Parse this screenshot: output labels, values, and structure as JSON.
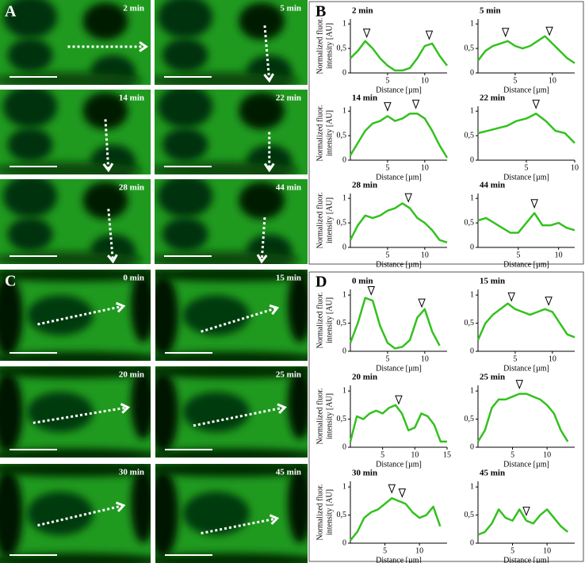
{
  "panel_a": {
    "label": "A",
    "frames": [
      "2 min",
      "5 min",
      "14 min",
      "22 min",
      "28 min",
      "44 min"
    ]
  },
  "panel_b": {
    "label": "B",
    "y_label": [
      "Normalized fluor.",
      "intensity [AU]"
    ],
    "x_label": "Distance [µm]",
    "yticks": [
      0,
      {
        "value": 0.5,
        "label": "0,5"
      },
      1
    ],
    "ylim": [
      0,
      1.1
    ],
    "plots": [
      {
        "time": "2 min",
        "xlim": [
          0,
          13
        ],
        "xticks": [
          5,
          10
        ],
        "x": [
          0,
          1,
          2,
          3,
          4,
          5,
          6,
          7,
          8,
          9,
          10,
          11,
          12,
          13
        ],
        "values": [
          0.3,
          0.45,
          0.65,
          0.5,
          0.3,
          0.15,
          0.05,
          0.05,
          0.1,
          0.3,
          0.55,
          0.6,
          0.35,
          0.15
        ],
        "peaks": [
          2.2,
          10.6
        ]
      },
      {
        "time": "5 min",
        "xlim": [
          0,
          13
        ],
        "xticks": [
          5,
          10
        ],
        "x": [
          0,
          1,
          2,
          3,
          4,
          5,
          6,
          7,
          8,
          9,
          10,
          11,
          12,
          13
        ],
        "values": [
          0.25,
          0.45,
          0.55,
          0.6,
          0.65,
          0.55,
          0.5,
          0.55,
          0.65,
          0.75,
          0.6,
          0.45,
          0.3,
          0.2
        ],
        "peaks": [
          3.7,
          9.6
        ]
      },
      {
        "time": "14 min",
        "xlim": [
          0,
          13
        ],
        "xticks": [
          5,
          10
        ],
        "x": [
          0,
          1,
          2,
          3,
          4,
          5,
          6,
          7,
          8,
          9,
          10,
          11,
          12,
          13
        ],
        "values": [
          0.1,
          0.35,
          0.6,
          0.75,
          0.8,
          0.9,
          0.8,
          0.85,
          0.95,
          0.95,
          0.85,
          0.6,
          0.3,
          0.05
        ],
        "peaks": [
          5,
          8.8
        ]
      },
      {
        "time": "22 min",
        "xlim": [
          0,
          10
        ],
        "xticks": [
          5,
          10
        ],
        "x": [
          0,
          1,
          2,
          3,
          4,
          5,
          6,
          7,
          8,
          9,
          10
        ],
        "values": [
          0.55,
          0.6,
          0.65,
          0.7,
          0.8,
          0.85,
          0.95,
          0.8,
          0.6,
          0.55,
          0.35
        ],
        "peaks": [
          6
        ]
      },
      {
        "time": "28 min",
        "xlim": [
          0,
          13
        ],
        "xticks": [
          5,
          10
        ],
        "x": [
          0,
          1,
          2,
          3,
          4,
          5,
          6,
          7,
          8,
          9,
          10,
          11,
          12,
          13
        ],
        "values": [
          0.15,
          0.45,
          0.65,
          0.6,
          0.65,
          0.75,
          0.8,
          0.9,
          0.8,
          0.6,
          0.5,
          0.35,
          0.15,
          0.1
        ],
        "peaks": [
          7.8
        ]
      },
      {
        "time": "44 min",
        "xlim": [
          0,
          12
        ],
        "xticks": [
          5,
          10
        ],
        "x": [
          0,
          1,
          2,
          3,
          4,
          5,
          6,
          7,
          8,
          9,
          10,
          11,
          12
        ],
        "values": [
          0.55,
          0.6,
          0.5,
          0.4,
          0.3,
          0.3,
          0.5,
          0.7,
          0.45,
          0.45,
          0.5,
          0.4,
          0.35
        ],
        "peaks": [
          7
        ]
      }
    ]
  },
  "panel_c": {
    "label": "C",
    "frames": [
      "0 min",
      "15 min",
      "20 min",
      "25 min",
      "30 min",
      "45 min"
    ]
  },
  "panel_d": {
    "label": "D",
    "y_label": [
      "Normalized fluor.",
      "intensity [AU]"
    ],
    "x_label": "Distance [µm]",
    "yticks": [
      0,
      {
        "value": 0.5,
        "label": "0,5"
      },
      1
    ],
    "ylim": [
      0,
      1.1
    ],
    "plots": [
      {
        "time": "0 min",
        "xlim": [
          0,
          13
        ],
        "xticks": [
          5,
          10
        ],
        "x": [
          0,
          1,
          2,
          3,
          4,
          5,
          6,
          7,
          8,
          9,
          10,
          11,
          12
        ],
        "values": [
          0.15,
          0.5,
          0.95,
          0.9,
          0.45,
          0.15,
          0.05,
          0.08,
          0.2,
          0.6,
          0.75,
          0.35,
          0.1
        ],
        "peaks": [
          2.8,
          9.6
        ]
      },
      {
        "time": "15 min",
        "xlim": [
          0,
          13
        ],
        "xticks": [
          5,
          10
        ],
        "x": [
          0,
          1,
          2,
          3,
          4,
          5,
          6,
          7,
          8,
          9,
          10,
          11,
          12,
          13
        ],
        "values": [
          0.2,
          0.5,
          0.65,
          0.75,
          0.85,
          0.75,
          0.7,
          0.65,
          0.7,
          0.75,
          0.7,
          0.5,
          0.3,
          0.25
        ],
        "peaks": [
          4.5,
          9.5
        ]
      },
      {
        "time": "20 min",
        "xlim": [
          0,
          15
        ],
        "xticks": [
          5,
          10,
          15
        ],
        "x": [
          0,
          1,
          2,
          3,
          4,
          5,
          6,
          7,
          8,
          9,
          10,
          11,
          12,
          13,
          14,
          15
        ],
        "values": [
          0.1,
          0.55,
          0.5,
          0.6,
          0.65,
          0.6,
          0.7,
          0.75,
          0.6,
          0.3,
          0.35,
          0.6,
          0.55,
          0.4,
          0.1,
          0.1
        ],
        "peaks": [
          7.5
        ]
      },
      {
        "time": "25 min",
        "xlim": [
          0,
          14
        ],
        "xticks": [
          5,
          10
        ],
        "x": [
          0,
          1,
          2,
          3,
          4,
          5,
          6,
          7,
          8,
          9,
          10,
          11,
          12,
          13
        ],
        "values": [
          0.1,
          0.3,
          0.7,
          0.85,
          0.85,
          0.9,
          0.95,
          0.95,
          0.9,
          0.85,
          0.75,
          0.6,
          0.3,
          0.1
        ],
        "peaks": [
          6
        ]
      },
      {
        "time": "30 min",
        "xlim": [
          0,
          14
        ],
        "xticks": [
          5,
          10
        ],
        "x": [
          0,
          1,
          2,
          3,
          4,
          5,
          6,
          7,
          8,
          9,
          10,
          11,
          12,
          13
        ],
        "values": [
          0.05,
          0.2,
          0.45,
          0.55,
          0.6,
          0.7,
          0.8,
          0.75,
          0.7,
          0.55,
          0.45,
          0.5,
          0.65,
          0.3
        ],
        "peaks": [
          6,
          7.5
        ]
      },
      {
        "time": "45 min",
        "xlim": [
          0,
          14
        ],
        "xticks": [
          5,
          10
        ],
        "x": [
          0,
          1,
          2,
          3,
          4,
          5,
          6,
          7,
          8,
          9,
          10,
          11,
          12,
          13
        ],
        "values": [
          0.15,
          0.2,
          0.35,
          0.6,
          0.45,
          0.4,
          0.6,
          0.4,
          0.35,
          0.5,
          0.6,
          0.45,
          0.3,
          0.2
        ],
        "peaks": [
          7
        ]
      }
    ]
  }
}
